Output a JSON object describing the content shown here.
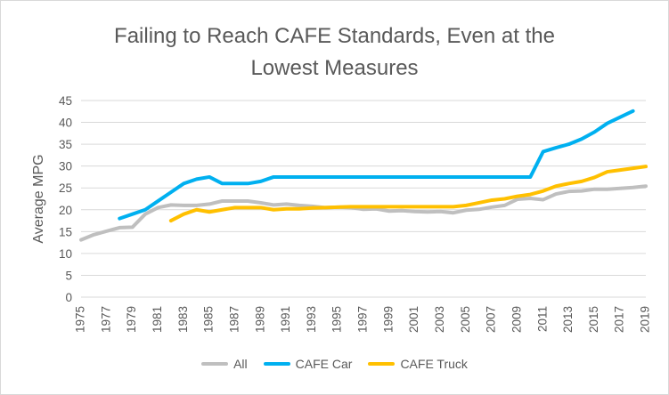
{
  "chart_data": {
    "type": "line",
    "title": "Failing to Reach CAFE Standards, Even at the\nLowest Measures",
    "xlabel": "",
    "ylabel": "Average MPG",
    "ylim": [
      0,
      45
    ],
    "yticks": [
      "0",
      "5",
      "10",
      "15",
      "20",
      "25",
      "30",
      "35",
      "40",
      "45"
    ],
    "xticks": [
      "1975",
      "1977",
      "1979",
      "1981",
      "1983",
      "1985",
      "1987",
      "1989",
      "1991",
      "1993",
      "1995",
      "1997",
      "1999",
      "2001",
      "2003",
      "2005",
      "2007",
      "2009",
      "2011",
      "2013",
      "2015",
      "2017",
      "2019"
    ],
    "x": [
      1975,
      1976,
      1977,
      1978,
      1979,
      1980,
      1981,
      1982,
      1983,
      1984,
      1985,
      1986,
      1987,
      1988,
      1989,
      1990,
      1991,
      1992,
      1993,
      1994,
      1995,
      1996,
      1997,
      1998,
      1999,
      2000,
      2001,
      2002,
      2003,
      2004,
      2005,
      2006,
      2007,
      2008,
      2009,
      2010,
      2011,
      2012,
      2013,
      2014,
      2015,
      2016,
      2017,
      2018,
      2019
    ],
    "grid": true,
    "legend_position": "bottom",
    "series": [
      {
        "name": "All",
        "color": "#bfbfbf",
        "values": [
          13.1,
          14.3,
          15.1,
          15.9,
          16.0,
          19.0,
          20.5,
          21.1,
          21.0,
          21.0,
          21.3,
          22.0,
          22.0,
          22.0,
          21.6,
          21.1,
          21.3,
          21.0,
          20.8,
          20.5,
          20.6,
          20.5,
          20.1,
          20.2,
          19.7,
          19.8,
          19.6,
          19.5,
          19.6,
          19.3,
          19.9,
          20.1,
          20.6,
          21.0,
          22.4,
          22.6,
          22.3,
          23.6,
          24.2,
          24.3,
          24.7,
          24.7,
          24.9,
          25.1,
          25.4
        ]
      },
      {
        "name": "CAFE Car",
        "color": "#00b0f0",
        "values": [
          null,
          null,
          null,
          18.0,
          19.0,
          20.0,
          22.0,
          24.0,
          26.0,
          27.0,
          27.5,
          26.0,
          26.0,
          26.0,
          26.5,
          27.5,
          27.5,
          27.5,
          27.5,
          27.5,
          27.5,
          27.5,
          27.5,
          27.5,
          27.5,
          27.5,
          27.5,
          27.5,
          27.5,
          27.5,
          27.5,
          27.5,
          27.5,
          27.5,
          27.5,
          27.5,
          33.3,
          34.2,
          35.0,
          36.2,
          37.8,
          39.8,
          41.2,
          42.6,
          null
        ]
      },
      {
        "name": "CAFE Truck",
        "color": "#ffc000",
        "values": [
          null,
          null,
          null,
          null,
          null,
          null,
          null,
          17.5,
          19.0,
          20.0,
          19.5,
          20.0,
          20.5,
          20.5,
          20.5,
          20.0,
          20.2,
          20.2,
          20.4,
          20.5,
          20.6,
          20.7,
          20.7,
          20.7,
          20.7,
          20.7,
          20.7,
          20.7,
          20.7,
          20.7,
          21.0,
          21.6,
          22.2,
          22.5,
          23.1,
          23.5,
          24.3,
          25.4,
          26.0,
          26.5,
          27.4,
          28.7,
          29.1,
          29.5,
          29.9
        ]
      }
    ]
  }
}
